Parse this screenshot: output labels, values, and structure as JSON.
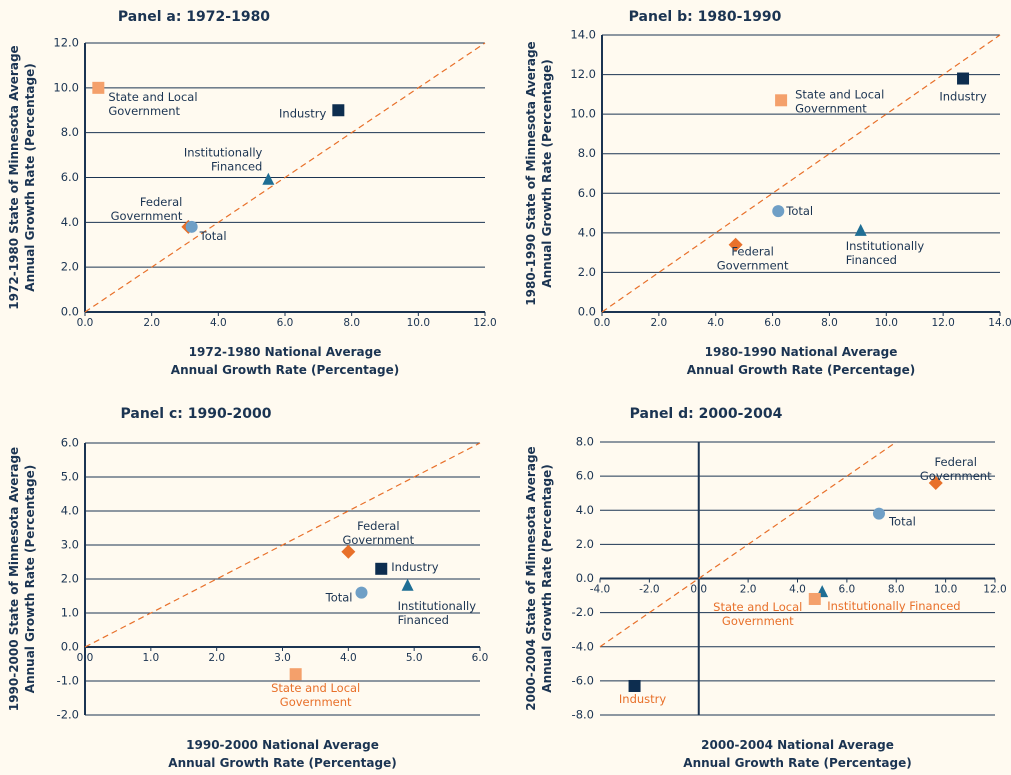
{
  "chart_data": [
    {
      "type": "scatter",
      "title": "Panel a: 1972-1980",
      "x_label": "1972-1980 National Average\nAnnual Growth Rate (Percentage)",
      "y_label": "1972-1980 State of Minnesota Average\nAnnual Growth Rate (Percentage)",
      "xlim": [
        0,
        12
      ],
      "ylim": [
        0,
        12
      ],
      "xticks": [
        {
          "value": 0,
          "label": "0.0"
        },
        {
          "value": 2,
          "label": "2.0"
        },
        {
          "value": 4,
          "label": "4.0"
        },
        {
          "value": 6,
          "label": "6.0"
        },
        {
          "value": 8,
          "label": "8.0"
        },
        {
          "value": 10,
          "label": "10.0"
        },
        {
          "value": 12,
          "label": "12.0"
        }
      ],
      "yticks": [
        {
          "value": 0,
          "label": "0.0"
        },
        {
          "value": 2,
          "label": "2.0"
        },
        {
          "value": 4,
          "label": "4.0"
        },
        {
          "value": 6,
          "label": "6.0"
        },
        {
          "value": 8,
          "label": "8.0"
        },
        {
          "value": 10,
          "label": "10.0"
        },
        {
          "value": 12,
          "label": "12.0"
        }
      ],
      "grid": true,
      "diagonal": true,
      "series": [
        {
          "name": "State and Local\nGovernment",
          "color": "#f4a06b",
          "marker": "square",
          "x": [
            0.4
          ],
          "values": [
            10.0
          ]
        },
        {
          "name": "Industry",
          "color": "#0d2d4f",
          "marker": "square",
          "x": [
            7.6
          ],
          "values": [
            9.0
          ]
        },
        {
          "name": "Institutionally\nFinanced",
          "color": "#1f6e94",
          "marker": "triangle",
          "x": [
            5.5
          ],
          "values": [
            5.9
          ]
        },
        {
          "name": "Federal\nGovernment",
          "color": "#e8702a",
          "marker": "diamond",
          "x": [
            3.1
          ],
          "values": [
            3.8
          ]
        },
        {
          "name": "Total",
          "color": "#6f9fc6",
          "marker": "circle",
          "x": [
            3.2
          ],
          "values": [
            3.8
          ]
        }
      ]
    },
    {
      "type": "scatter",
      "title": "Panel b: 1980-1990",
      "x_label": "1980-1990 National Average\nAnnual Growth Rate (Percentage)",
      "y_label": "1980-1990 State of Minnesota Average\nAnnual Growth Rate (Percentage)",
      "xlim": [
        0,
        14
      ],
      "ylim": [
        0,
        14
      ],
      "xticks": [
        {
          "value": 0,
          "label": "0.0"
        },
        {
          "value": 2,
          "label": "2.0"
        },
        {
          "value": 4,
          "label": "4.0"
        },
        {
          "value": 6,
          "label": "6.0"
        },
        {
          "value": 8,
          "label": "8.0"
        },
        {
          "value": 10,
          "label": "10.0"
        },
        {
          "value": 12,
          "label": "12.0"
        },
        {
          "value": 14,
          "label": "14.0"
        }
      ],
      "yticks": [
        {
          "value": 0,
          "label": "0.0"
        },
        {
          "value": 2,
          "label": "2.0"
        },
        {
          "value": 4,
          "label": "4.0"
        },
        {
          "value": 6,
          "label": "6.0"
        },
        {
          "value": 8,
          "label": "8.0"
        },
        {
          "value": 10,
          "label": "10.0"
        },
        {
          "value": 12,
          "label": "12.0"
        },
        {
          "value": 14,
          "label": "14.0"
        }
      ],
      "grid": true,
      "diagonal": true,
      "series": [
        {
          "name": "State and Local\nGovernment",
          "color": "#f4a06b",
          "marker": "square",
          "x": [
            6.3
          ],
          "values": [
            10.7
          ]
        },
        {
          "name": "Industry",
          "color": "#0d2d4f",
          "marker": "square",
          "x": [
            12.7
          ],
          "values": [
            11.8
          ]
        },
        {
          "name": "Total",
          "color": "#6f9fc6",
          "marker": "circle",
          "x": [
            6.2
          ],
          "values": [
            5.1
          ]
        },
        {
          "name": "Institutionally\nFinanced",
          "color": "#1f6e94",
          "marker": "triangle",
          "x": [
            9.1
          ],
          "values": [
            4.1
          ]
        },
        {
          "name": "Federal\nGovernment",
          "color": "#e8702a",
          "marker": "diamond",
          "x": [
            4.7
          ],
          "values": [
            3.4
          ]
        }
      ]
    },
    {
      "type": "scatter",
      "title": "Panel c: 1990-2000",
      "x_label": "1990-2000 National Average\nAnnual Growth Rate (Percentage)",
      "y_label": "1990-2000 State of Minnesota Average\nAnnual Growth Rate (Percentage)",
      "xlim": [
        0,
        6
      ],
      "ylim": [
        -2,
        6
      ],
      "xticks": [
        {
          "value": 0,
          "label": "0.0"
        },
        {
          "value": 1,
          "label": "1.0"
        },
        {
          "value": 2,
          "label": "2.0"
        },
        {
          "value": 3,
          "label": "3.0"
        },
        {
          "value": 4,
          "label": "4.0"
        },
        {
          "value": 5,
          "label": "5.0"
        },
        {
          "value": 6,
          "label": "6.0"
        }
      ],
      "yticks": [
        {
          "value": -2,
          "label": "-2.0"
        },
        {
          "value": -1,
          "label": "-1.0"
        },
        {
          "value": 0,
          "label": "0.0"
        },
        {
          "value": 1,
          "label": "1.0"
        },
        {
          "value": 2,
          "label": "2.0"
        },
        {
          "value": 3,
          "label": "3.0"
        },
        {
          "value": 4,
          "label": "4.0"
        },
        {
          "value": 5,
          "label": "5.0"
        },
        {
          "value": 6,
          "label": "6.0"
        }
      ],
      "grid": true,
      "diagonal": true,
      "series": [
        {
          "name": "Federal\nGovernment",
          "color": "#e8702a",
          "marker": "diamond",
          "x": [
            4.0
          ],
          "values": [
            2.8
          ]
        },
        {
          "name": "Industry",
          "color": "#0d2d4f",
          "marker": "square",
          "x": [
            4.5
          ],
          "values": [
            2.3
          ]
        },
        {
          "name": "Institutionally\nFinanced",
          "color": "#1f6e94",
          "marker": "triangle",
          "x": [
            4.9
          ],
          "values": [
            1.8
          ]
        },
        {
          "name": "Total",
          "color": "#6f9fc6",
          "marker": "circle",
          "x": [
            4.2
          ],
          "values": [
            1.6
          ]
        },
        {
          "name": "State and Local\nGovernment",
          "color": "#f4a06b",
          "marker": "square",
          "x": [
            3.2
          ],
          "values": [
            -0.8
          ],
          "label_color": "#e8702a"
        }
      ]
    },
    {
      "type": "scatter",
      "title": "Panel d: 2000-2004",
      "x_label": "2000-2004 National Average\nAnnual Growth Rate (Percentage)",
      "y_label": "2000-2004 State of Minnesota Average\nAnnual Growth Rate (Percentage)",
      "xlim": [
        -4,
        12
      ],
      "ylim": [
        -8,
        8
      ],
      "xticks": [
        {
          "value": -4,
          "label": "-4.0"
        },
        {
          "value": -2,
          "label": "-2.0"
        },
        {
          "value": 0,
          "label": "0.0"
        },
        {
          "value": 2,
          "label": "2.0"
        },
        {
          "value": 4,
          "label": "4.0"
        },
        {
          "value": 6,
          "label": "6.0"
        },
        {
          "value": 8,
          "label": "8.0"
        },
        {
          "value": 10,
          "label": "10.0"
        },
        {
          "value": 12,
          "label": "12.0"
        }
      ],
      "yticks": [
        {
          "value": -8,
          "label": "-8.0"
        },
        {
          "value": -6,
          "label": "-6.0"
        },
        {
          "value": -4,
          "label": "-4.0"
        },
        {
          "value": -2,
          "label": "-2.0"
        },
        {
          "value": 0,
          "label": "0.0"
        },
        {
          "value": 2,
          "label": "2.0"
        },
        {
          "value": 4,
          "label": "4.0"
        },
        {
          "value": 6,
          "label": "6.0"
        },
        {
          "value": 8,
          "label": "8.0"
        }
      ],
      "grid": true,
      "diagonal": true,
      "series": [
        {
          "name": "Federal\nGovernment",
          "color": "#e8702a",
          "marker": "diamond",
          "x": [
            9.6
          ],
          "values": [
            5.6
          ]
        },
        {
          "name": "Total",
          "color": "#6f9fc6",
          "marker": "circle",
          "x": [
            7.3
          ],
          "values": [
            3.8
          ]
        },
        {
          "name": "Institutionally Financed",
          "color": "#1f6e94",
          "marker": "triangle",
          "x": [
            5.0
          ],
          "values": [
            -0.8
          ],
          "label_color": "#e8702a"
        },
        {
          "name": "State and Local\nGovernment",
          "color": "#f4a06b",
          "marker": "square",
          "x": [
            4.7
          ],
          "values": [
            -1.2
          ],
          "label_color": "#e8702a"
        },
        {
          "name": "Industry",
          "color": "#0d2d4f",
          "marker": "square",
          "x": [
            -2.6
          ],
          "values": [
            -6.3
          ],
          "label_color": "#e8702a"
        }
      ]
    }
  ]
}
